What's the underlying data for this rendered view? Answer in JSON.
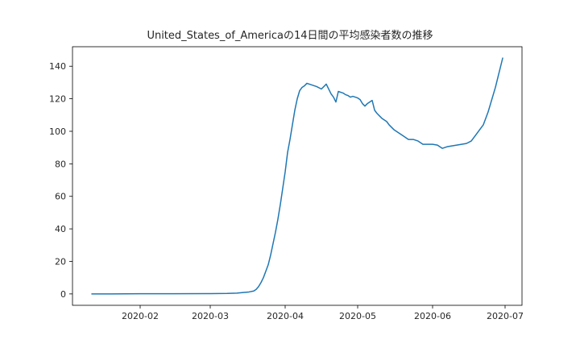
{
  "chart_data": {
    "type": "line",
    "title": "United_States_of_Americaの14日間の平均感染者数の推移",
    "xlabel": "",
    "ylabel": "",
    "x_tick_labels": [
      "2020-02",
      "2020-03",
      "2020-04",
      "2020-05",
      "2020-06",
      "2020-07"
    ],
    "x_ticks": [
      "2020-02-01",
      "2020-03-01",
      "2020-04-01",
      "2020-05-01",
      "2020-06-01",
      "2020-07-01"
    ],
    "y_ticks": [
      0,
      20,
      40,
      60,
      80,
      100,
      120,
      140
    ],
    "xlim": [
      "2020-01-04",
      "2020-07-08"
    ],
    "ylim": [
      -7,
      152
    ],
    "grid": false,
    "line_color": "#1f77b4",
    "series": [
      {
        "x": [
          "2020-01-12",
          "2020-01-20",
          "2020-02-01",
          "2020-02-15",
          "2020-03-01",
          "2020-03-08",
          "2020-03-12",
          "2020-03-15",
          "2020-03-17",
          "2020-03-19",
          "2020-03-20",
          "2020-03-21",
          "2020-03-22",
          "2020-03-23",
          "2020-03-24",
          "2020-03-25",
          "2020-03-26",
          "2020-03-27",
          "2020-03-28",
          "2020-03-29",
          "2020-03-30",
          "2020-03-31",
          "2020-04-01",
          "2020-04-02",
          "2020-04-03",
          "2020-04-04",
          "2020-04-05",
          "2020-04-06",
          "2020-04-07",
          "2020-04-08",
          "2020-04-09",
          "2020-04-10",
          "2020-04-12",
          "2020-04-14",
          "2020-04-16",
          "2020-04-18",
          "2020-04-20",
          "2020-04-21",
          "2020-04-22",
          "2020-04-23",
          "2020-04-24",
          "2020-04-25",
          "2020-04-26",
          "2020-04-27",
          "2020-04-28",
          "2020-04-29",
          "2020-04-30",
          "2020-05-01",
          "2020-05-02",
          "2020-05-03",
          "2020-05-04",
          "2020-05-05",
          "2020-05-06",
          "2020-05-07",
          "2020-05-08",
          "2020-05-09",
          "2020-05-10",
          "2020-05-11",
          "2020-05-12",
          "2020-05-13",
          "2020-05-14",
          "2020-05-16",
          "2020-05-18",
          "2020-05-20",
          "2020-05-22",
          "2020-05-24",
          "2020-05-26",
          "2020-05-28",
          "2020-05-30",
          "2020-06-01",
          "2020-06-03",
          "2020-06-05",
          "2020-06-07",
          "2020-06-09",
          "2020-06-11",
          "2020-06-13",
          "2020-06-15",
          "2020-06-17",
          "2020-06-19",
          "2020-06-21",
          "2020-06-22",
          "2020-06-23",
          "2020-06-24",
          "2020-06-25",
          "2020-06-26",
          "2020-06-27",
          "2020-06-28",
          "2020-06-29",
          "2020-06-30"
        ],
        "y": [
          0,
          0,
          0.1,
          0.1,
          0.2,
          0.3,
          0.5,
          0.9,
          1.2,
          1.8,
          2.8,
          4.5,
          7,
          10,
          14,
          18,
          24,
          31,
          38,
          46,
          55,
          65,
          75,
          87,
          95,
          104,
          113,
          120,
          125,
          127,
          128,
          129.5,
          128.5,
          127.5,
          126,
          129,
          123,
          121,
          118,
          124.5,
          124,
          123.5,
          122.5,
          122,
          121,
          121.5,
          121,
          120.5,
          119.5,
          117,
          115.5,
          117,
          118,
          119,
          113,
          111,
          109.5,
          108,
          107,
          106,
          104,
          101,
          99,
          97,
          95,
          95,
          94,
          92,
          92,
          92,
          91.5,
          89.5,
          90.5,
          91,
          91.5,
          92,
          92.5,
          94,
          98,
          102,
          104,
          108,
          112,
          117,
          122,
          127,
          133,
          139,
          145
        ]
      }
    ]
  }
}
